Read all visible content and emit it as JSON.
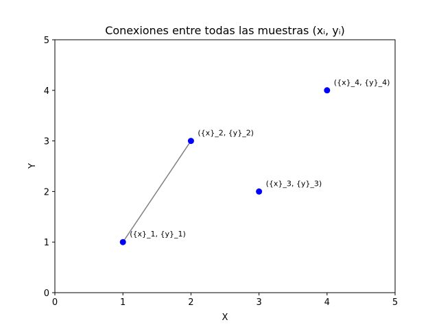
{
  "chart_data": {
    "type": "scatter",
    "title": "Conexiones entre todas las muestras (xᵢ, yᵢ)",
    "xlabel": "X",
    "ylabel": "Y",
    "xlim": [
      0,
      5
    ],
    "ylim": [
      0,
      5
    ],
    "xticks": [
      0,
      1,
      2,
      3,
      4,
      5
    ],
    "yticks": [
      0,
      1,
      2,
      3,
      4,
      5
    ],
    "grid": false,
    "point_color": "#0000ff",
    "line_color": "#808080",
    "points": [
      {
        "x": 1,
        "y": 1,
        "label": "({x}_1, {y}_1)"
      },
      {
        "x": 2,
        "y": 3,
        "label": "({x}_2, {y}_2)"
      },
      {
        "x": 3,
        "y": 2,
        "label": "({x}_3, {y}_3)"
      },
      {
        "x": 4,
        "y": 4,
        "label": "({x}_4, {y}_4)"
      }
    ],
    "connections": [
      {
        "from": 0,
        "to": 1
      }
    ]
  }
}
